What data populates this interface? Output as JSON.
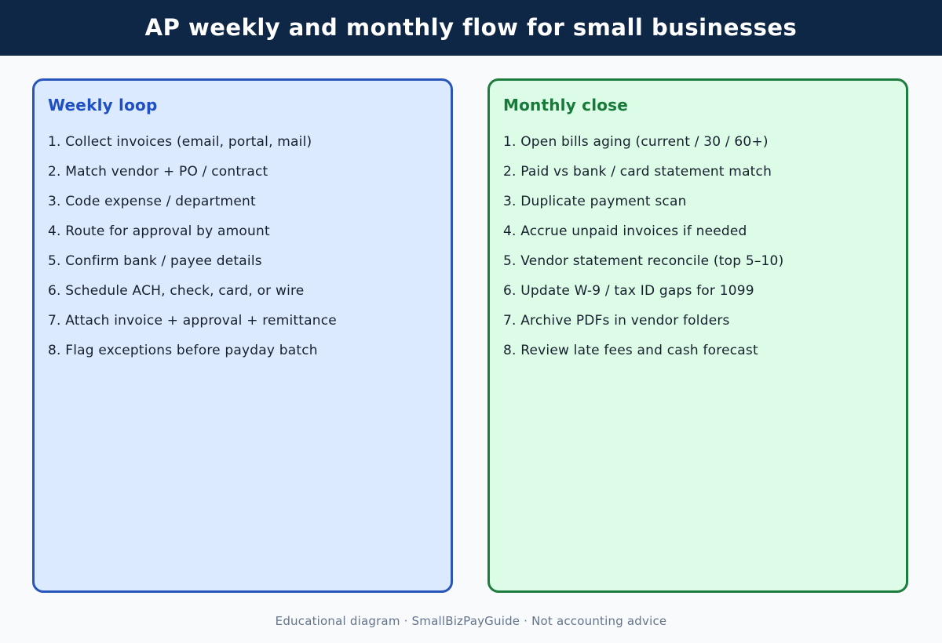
{
  "header": {
    "title": "AP weekly and monthly flow for small businesses"
  },
  "weekly": {
    "title": "Weekly loop",
    "items": [
      "1. Collect invoices (email, portal, mail)",
      "2. Match vendor + PO / contract",
      "3. Code expense / department",
      "4. Route for approval by amount",
      "5. Confirm bank / payee details",
      "6. Schedule ACH, check, card, or wire",
      "7. Attach invoice + approval + remittance",
      "8. Flag exceptions before payday batch"
    ]
  },
  "monthly": {
    "title": "Monthly close",
    "items": [
      "1. Open bills aging (current / 30 / 60+)",
      "2. Paid vs bank / card statement match",
      "3. Duplicate payment scan",
      "4. Accrue unpaid invoices if needed",
      "5. Vendor statement reconcile (top 5–10)",
      "6. Update W-9 / tax ID gaps for 1099",
      "7. Archive PDFs in vendor folders",
      "8. Review late fees and cash forecast"
    ]
  },
  "footer": {
    "text": "Educational diagram · SmallBizPayGuide · Not accounting advice"
  },
  "colors": {
    "header_bg": "#0f2746",
    "weekly_border": "#2756b8",
    "weekly_fill": "#dbeafe",
    "monthly_border": "#1e7d3e",
    "monthly_fill": "#dcfce7"
  }
}
